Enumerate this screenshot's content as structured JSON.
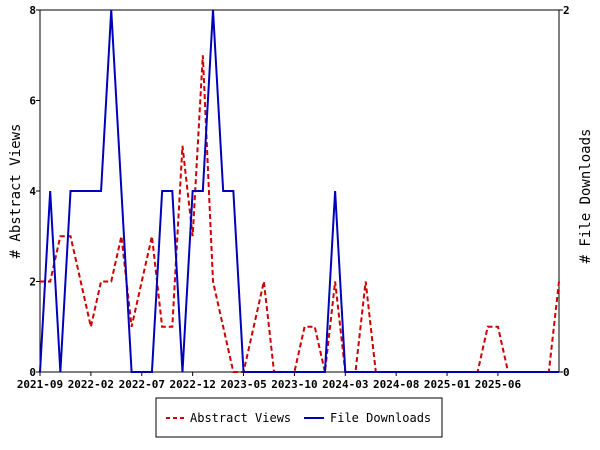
{
  "chart_data": {
    "type": "line",
    "x_tick_labels": [
      "2021-09",
      "2022-02",
      "2022-07",
      "2022-12",
      "2023-05",
      "2023-10",
      "2024-03",
      "2024-08",
      "2025-01",
      "2025-06"
    ],
    "x_start": "2021-09",
    "ylabel_left": "# Abstract Views",
    "ylabel_right": "# File Downloads",
    "ylim_left": [
      0,
      8
    ],
    "yticks_left": [
      0,
      2,
      4,
      6,
      8
    ],
    "ylim_right": [
      0,
      2
    ],
    "yticks_right": [
      0,
      2
    ],
    "grid": false,
    "legend_position": "bottom",
    "series": [
      {
        "name": "Abstract Views",
        "axis": "left",
        "color": "#cc0000",
        "style": "dashed",
        "values": [
          2,
          2,
          3,
          3,
          2,
          1,
          2,
          2,
          3,
          1,
          2,
          3,
          1,
          1,
          5,
          3,
          7,
          2,
          1,
          0,
          0,
          1,
          2,
          0,
          0,
          0,
          1,
          1,
          0,
          2,
          0,
          0,
          2,
          0,
          0,
          0,
          0,
          0,
          0,
          0,
          0,
          0,
          0,
          0,
          1,
          1,
          0,
          0,
          0,
          0,
          0,
          2
        ]
      },
      {
        "name": "File Downloads",
        "axis": "right",
        "color": "#0000bb",
        "style": "solid",
        "values": [
          0,
          1,
          0,
          1,
          1,
          1,
          1,
          2,
          1,
          0,
          0,
          0,
          1,
          1,
          0,
          1,
          1,
          2,
          1,
          1,
          0,
          0,
          0,
          0,
          0,
          0,
          0,
          0,
          0,
          1,
          0,
          0,
          0,
          0,
          0,
          0,
          0,
          0,
          0,
          0,
          0,
          0,
          0,
          0,
          0,
          0,
          0,
          0,
          0,
          0,
          0,
          0
        ]
      }
    ]
  }
}
